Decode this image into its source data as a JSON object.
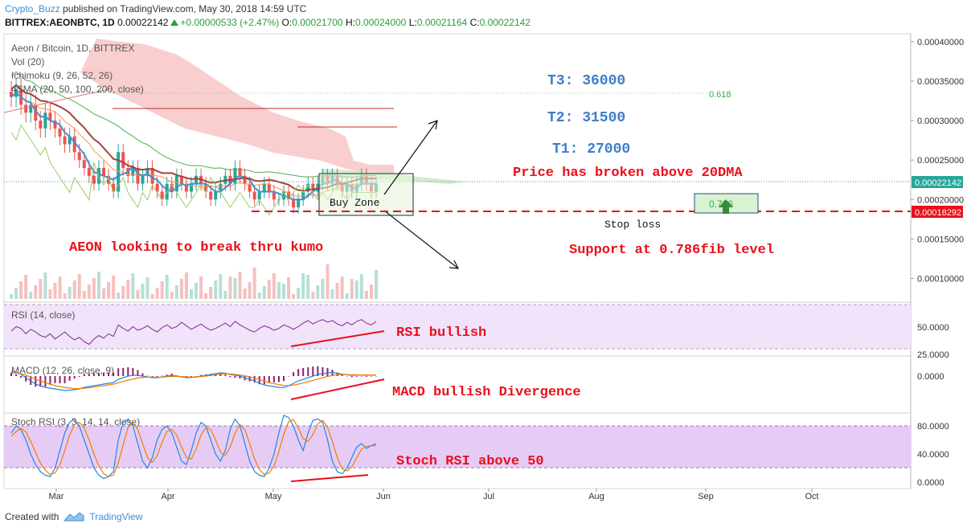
{
  "header": {
    "author": "Crypto_Buzz",
    "published": " published on TradingView.com, May 30, 2018 14:59 UTC",
    "symbol": "BITTREX:AEONBTC, 1D",
    "last": "0.00022142",
    "change": "+0.00000533 (+2.47%)",
    "o_label": "O:",
    "o": "0.00021700",
    "h_label": "H:",
    "h": "0.00024000",
    "l_label": "L:",
    "l": "0.00021164",
    "c_label": "C:",
    "c": "0.00022142"
  },
  "footer": {
    "created_with": "Created with",
    "brand": "TradingView"
  },
  "colors": {
    "price_up": "#26a69a",
    "price_down": "#ef5350",
    "annotation_red": "#e8101a",
    "annotation_blue": "#3d7ec9",
    "fib_green": "#2cb24a",
    "rsi_band": "#f1e3fa",
    "stoch_band": "#e6ccf5",
    "kumo_red": "#f7c6c6",
    "kumo_green": "#cfe8c6"
  },
  "chart_data": [
    {
      "type": "candlestick",
      "pane": "price",
      "title": "Aeon / Bitcoin, 1D, BITTREX",
      "indicators": [
        "Vol (20)",
        "Ichimoku (9, 26, 52, 26)",
        "4SMA (20, 50, 100, 200, close)"
      ],
      "x_ticks": [
        "Mar",
        "Apr",
        "May",
        "Jun",
        "Jul",
        "Aug",
        "Sep",
        "Oct"
      ],
      "y_ticks": [
        "0.00040000",
        "0.00035000",
        "0.00030000",
        "0.00025000",
        "0.00020000",
        "0.00015000",
        "0.00010000"
      ],
      "ylim": [
        7e-05,
        0.00041
      ],
      "last_price": "0.00022142",
      "stop_loss_price": "0.00018292",
      "fib_labels": [
        "0.618",
        "0.786"
      ],
      "close_series": [
        0.00033,
        0.00034,
        0.00032,
        0.00031,
        0.00032,
        0.0003,
        0.00029,
        0.00031,
        0.0003,
        0.00029,
        0.00028,
        0.00027,
        0.00028,
        0.00026,
        0.00025,
        0.00024,
        0.00023,
        0.00022,
        0.00024,
        0.00023,
        0.00022,
        0.00021,
        0.00026,
        0.00024,
        0.00023,
        0.00024,
        0.00022,
        0.00023,
        0.00024,
        0.00022,
        0.00021,
        0.0002,
        0.00022,
        0.00021,
        0.00023,
        0.00022,
        0.00021,
        0.00022,
        0.00023,
        0.00022,
        0.00021,
        0.0002,
        0.00021,
        0.00022,
        0.00023,
        0.00022,
        0.00024,
        0.00023,
        0.00022,
        0.00021,
        0.0002,
        0.00021,
        0.00022,
        0.00021,
        0.0002,
        0.0002,
        0.00021,
        0.0002,
        0.00019,
        0.0002,
        0.00021,
        0.00022,
        0.00021,
        0.00022,
        0.00023,
        0.00022,
        0.00023,
        0.00022,
        0.00021,
        0.00022,
        0.00021,
        0.00022,
        0.00023,
        0.00022,
        0.00021,
        0.00022
      ]
    },
    {
      "type": "line",
      "pane": "rsi",
      "title": "RSI (14, close)",
      "y_ticks": [
        "50.0000",
        "25.0000"
      ],
      "ylim": [
        20,
        80
      ],
      "values": [
        45,
        50,
        48,
        42,
        47,
        44,
        40,
        38,
        42,
        36,
        40,
        44,
        39,
        35,
        38,
        33,
        30,
        36,
        40,
        37,
        42,
        39,
        52,
        48,
        45,
        50,
        46,
        48,
        51,
        47,
        44,
        49,
        52,
        48,
        50,
        55,
        51,
        47,
        50,
        53,
        49,
        46,
        48,
        51,
        54,
        50,
        56,
        52,
        49,
        46,
        44,
        48,
        51,
        49,
        46,
        48,
        52,
        50,
        47,
        50,
        54,
        57,
        53,
        56,
        58,
        55,
        57,
        53,
        51,
        55,
        52,
        56,
        58,
        54,
        52,
        56
      ]
    },
    {
      "type": "line",
      "pane": "macd",
      "title": "MACD (12, 26, close, 9)",
      "y_ticks": [
        "0.0000"
      ],
      "values": [
        0.3,
        0.25,
        0.1,
        -0.1,
        -0.3,
        -0.5,
        -0.6,
        -0.7,
        -0.75,
        -0.8,
        -0.85,
        -0.9,
        -0.88,
        -0.85,
        -0.8,
        -0.7,
        -0.65,
        -0.6,
        -0.55,
        -0.5,
        -0.45,
        -0.4,
        -0.2,
        -0.1,
        0.0,
        0.05,
        0.05,
        0.0,
        -0.05,
        -0.1,
        -0.1,
        -0.05,
        0.0,
        0.05,
        0.0,
        -0.05,
        -0.1,
        -0.08,
        -0.05,
        0.0,
        0.05,
        0.1,
        0.15,
        0.2,
        0.18,
        0.1,
        0.05,
        0.0,
        -0.1,
        -0.2,
        -0.3,
        -0.45,
        -0.55,
        -0.6,
        -0.65,
        -0.7,
        -0.72,
        -0.6,
        -0.45,
        -0.3,
        -0.2,
        -0.1,
        0.0,
        0.1,
        0.15,
        0.2,
        0.22,
        0.18,
        0.12,
        0.08,
        0.05,
        0.06,
        0.07,
        0.05,
        0.06,
        0.07
      ],
      "signal": [
        0.2,
        0.2,
        0.15,
        0.05,
        -0.05,
        -0.2,
        -0.3,
        -0.4,
        -0.5,
        -0.6,
        -0.65,
        -0.7,
        -0.75,
        -0.78,
        -0.78,
        -0.76,
        -0.72,
        -0.68,
        -0.64,
        -0.6,
        -0.55,
        -0.5,
        -0.42,
        -0.33,
        -0.25,
        -0.18,
        -0.12,
        -0.08,
        -0.06,
        -0.07,
        -0.07,
        -0.06,
        -0.04,
        -0.02,
        -0.02,
        -0.03,
        -0.05,
        -0.06,
        -0.05,
        -0.03,
        0.0,
        0.04,
        0.08,
        0.12,
        0.14,
        0.13,
        0.1,
        0.07,
        0.02,
        -0.05,
        -0.12,
        -0.22,
        -0.32,
        -0.4,
        -0.47,
        -0.53,
        -0.58,
        -0.59,
        -0.56,
        -0.5,
        -0.43,
        -0.35,
        -0.27,
        -0.18,
        -0.1,
        -0.03,
        0.04,
        0.08,
        0.09,
        0.09,
        0.08,
        0.08,
        0.07,
        0.07,
        0.07,
        0.07
      ]
    },
    {
      "type": "line",
      "pane": "stoch",
      "title": "Stoch RSI (3, 3, 14, 14, close)",
      "y_ticks": [
        "80.0000",
        "40.0000",
        "0.0000"
      ],
      "ylim": [
        -2,
        100
      ],
      "k": [
        70,
        80,
        75,
        60,
        40,
        25,
        15,
        10,
        8,
        20,
        45,
        70,
        85,
        90,
        80,
        60,
        40,
        20,
        10,
        5,
        8,
        15,
        60,
        85,
        90,
        80,
        55,
        30,
        20,
        35,
        60,
        75,
        80,
        70,
        50,
        30,
        25,
        45,
        70,
        85,
        80,
        60,
        40,
        30,
        45,
        75,
        90,
        80,
        55,
        30,
        15,
        10,
        8,
        20,
        40,
        70,
        95,
        92,
        80,
        60,
        45,
        70,
        88,
        90,
        85,
        60,
        30,
        15,
        12,
        20,
        35,
        50,
        55,
        48,
        52,
        55
      ],
      "d": [
        65,
        72,
        76,
        72,
        58,
        42,
        27,
        17,
        11,
        13,
        24,
        45,
        67,
        82,
        85,
        77,
        60,
        40,
        23,
        12,
        8,
        10,
        28,
        53,
        78,
        85,
        75,
        55,
        35,
        28,
        38,
        57,
        72,
        75,
        67,
        50,
        35,
        33,
        47,
        67,
        78,
        75,
        60,
        43,
        38,
        50,
        70,
        82,
        75,
        55,
        33,
        18,
        11,
        13,
        23,
        43,
        68,
        86,
        89,
        77,
        62,
        58,
        68,
        83,
        88,
        78,
        58,
        35,
        19,
        16,
        22,
        35,
        47,
        51,
        52,
        52
      ]
    }
  ],
  "annotations": {
    "t3": "T3: 36000",
    "t2": "T2: 31500",
    "t1": "T1: 27000",
    "broken": "Price has broken above 20DMA",
    "buy_zone": "Buy Zone",
    "stop_loss": "Stop loss",
    "support": "Support at 0.786fib level",
    "kumo": "AEON looking to break thru kumo",
    "rsi": "RSI bullish",
    "macd": "MACD bullish Divergence",
    "stoch": "Stoch RSI above 50"
  }
}
